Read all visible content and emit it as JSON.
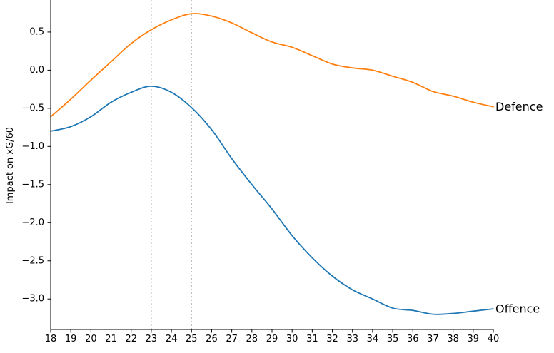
{
  "chart_data": {
    "type": "line",
    "title": "",
    "xlabel": "",
    "ylabel": "Impact on xG/60",
    "xlim": [
      18,
      40
    ],
    "ylim": [
      -3.4,
      0.92
    ],
    "x_ticks": [
      "18",
      "19",
      "20",
      "21",
      "22",
      "23",
      "24",
      "25",
      "26",
      "27",
      "28",
      "29",
      "30",
      "31",
      "32",
      "33",
      "34",
      "35",
      "36",
      "37",
      "38",
      "39",
      "40"
    ],
    "y_ticks": [
      0.5,
      0.0,
      -0.5,
      -1.0,
      -1.5,
      -2.0,
      -2.5,
      -3.0
    ],
    "y_tick_labels": [
      "0.5",
      "0.0",
      "−0.5",
      "−1.0",
      "−1.5",
      "−2.0",
      "−2.5",
      "−3.0"
    ],
    "reference_lines": [
      23,
      25
    ],
    "grid": false,
    "legend": "none",
    "x": [
      18,
      19,
      20,
      21,
      22,
      23,
      24,
      25,
      26,
      27,
      28,
      29,
      30,
      31,
      32,
      33,
      34,
      35,
      36,
      37,
      38,
      39,
      40
    ],
    "series": [
      {
        "name": "Defence",
        "color": "#ff7f0e",
        "values": [
          -0.61,
          -0.38,
          -0.13,
          0.11,
          0.35,
          0.53,
          0.66,
          0.74,
          0.71,
          0.62,
          0.49,
          0.37,
          0.3,
          0.19,
          0.08,
          0.03,
          0.0,
          -0.08,
          -0.16,
          -0.28,
          -0.34,
          -0.42,
          -0.48
        ]
      },
      {
        "name": "Offence",
        "color": "#1f77b4",
        "values": [
          -0.8,
          -0.74,
          -0.61,
          -0.42,
          -0.29,
          -0.21,
          -0.29,
          -0.49,
          -0.78,
          -1.16,
          -1.5,
          -1.82,
          -2.17,
          -2.46,
          -2.7,
          -2.88,
          -3.0,
          -3.12,
          -3.15,
          -3.2,
          -3.19,
          -3.16,
          -3.13
        ]
      }
    ]
  }
}
